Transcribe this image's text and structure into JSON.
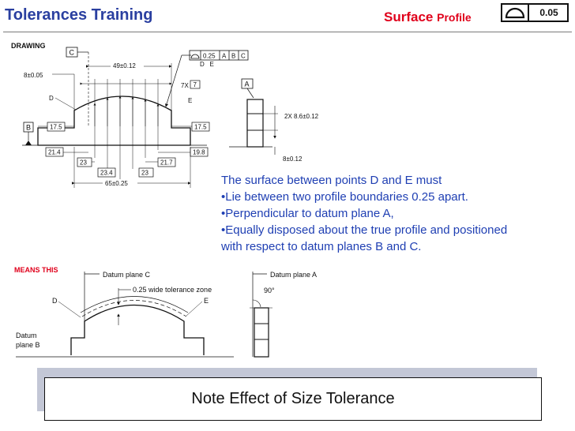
{
  "header": {
    "title": "Tolerances Training",
    "subtitle_main": "Surface",
    "subtitle_small": "Profile",
    "symbol_icon": "profile-of-surface-symbol",
    "tolerance_value": "0.05",
    "title_color": "#2a3fa0",
    "subtitle_color": "#e0001b"
  },
  "drawing": {
    "section_label": "DRAWING",
    "datum_labels": {
      "A": "A",
      "B": "B",
      "C": "C"
    },
    "feature_frame": {
      "value": "0.25",
      "datums": [
        "A",
        "B",
        "C"
      ],
      "between": "D   E"
    },
    "points": {
      "D": "D",
      "E": "E"
    },
    "dims": {
      "top_span": "49±0.12",
      "left_height": "8±0.05",
      "count": "7X",
      "count_box": "7",
      "left_step": "17.5",
      "right_step": "17.5",
      "left_bottom": "21.4",
      "right_bottom": "19.8",
      "inner_left": "23",
      "inner_right": "21.7",
      "center_left": "23.4",
      "center_right": "23",
      "total_width": "65±0.25",
      "side_width": "2X 8.6±0.12",
      "side_base": "8±0.12"
    }
  },
  "description": {
    "intro": "The surface between points D and E must",
    "bullets": [
      "•Lie between two profile boundaries 0.25 apart.",
      "•Perpendicular to datum plane A,",
      "•Equally disposed about the true profile and positioned",
      "with respect to datum planes B and C."
    ],
    "color": "#1f3fb3"
  },
  "means_this": {
    "section_label": "MEANS THIS",
    "datum_plane_c": "Datum plane C",
    "datum_plane_a": "Datum plane A",
    "tolerance_zone": "0.25 wide tolerance zone",
    "point_d": "D",
    "point_e": "E",
    "angle": "90°",
    "datum_plane_b_line1": "Datum",
    "datum_plane_b_line2": "plane B"
  },
  "note": {
    "text": "Note Effect of Size Tolerance"
  }
}
